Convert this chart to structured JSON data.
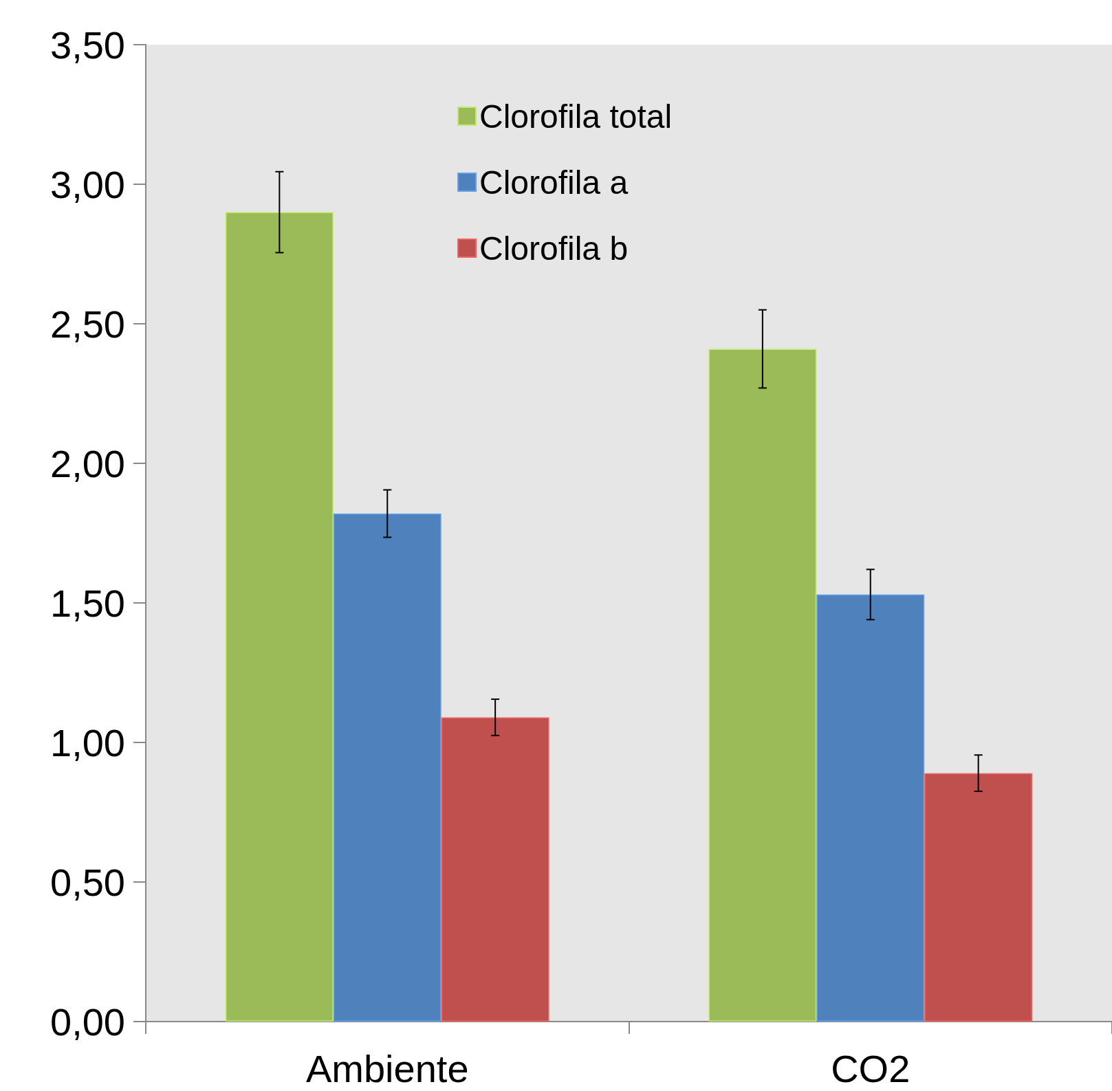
{
  "chart_data": {
    "type": "bar",
    "categories": [
      "Ambiente",
      "CO2"
    ],
    "series": [
      {
        "name": "Clorofila total",
        "color": "#9bbb59",
        "values": [
          2.9,
          2.41
        ],
        "errors": [
          0.145,
          0.14
        ]
      },
      {
        "name": "Clorofila a",
        "color": "#4f81bd",
        "values": [
          1.82,
          1.53
        ],
        "errors": [
          0.085,
          0.09
        ]
      },
      {
        "name": "Clorofila b",
        "color": "#c0504d",
        "values": [
          1.09,
          0.89
        ],
        "errors": [
          0.065,
          0.065
        ]
      }
    ],
    "ylim": [
      0,
      3.5
    ],
    "yticks": [
      {
        "value": 0,
        "label": "0,00"
      },
      {
        "value": 0.5,
        "label": "0,50"
      },
      {
        "value": 1,
        "label": "1,00"
      },
      {
        "value": 1.5,
        "label": "1,50"
      },
      {
        "value": 2,
        "label": "2,00"
      },
      {
        "value": 2.5,
        "label": "2,50"
      },
      {
        "value": 3,
        "label": "3,00"
      },
      {
        "value": 3.5,
        "label": "3,50"
      }
    ],
    "grid": false,
    "legend": "top"
  }
}
